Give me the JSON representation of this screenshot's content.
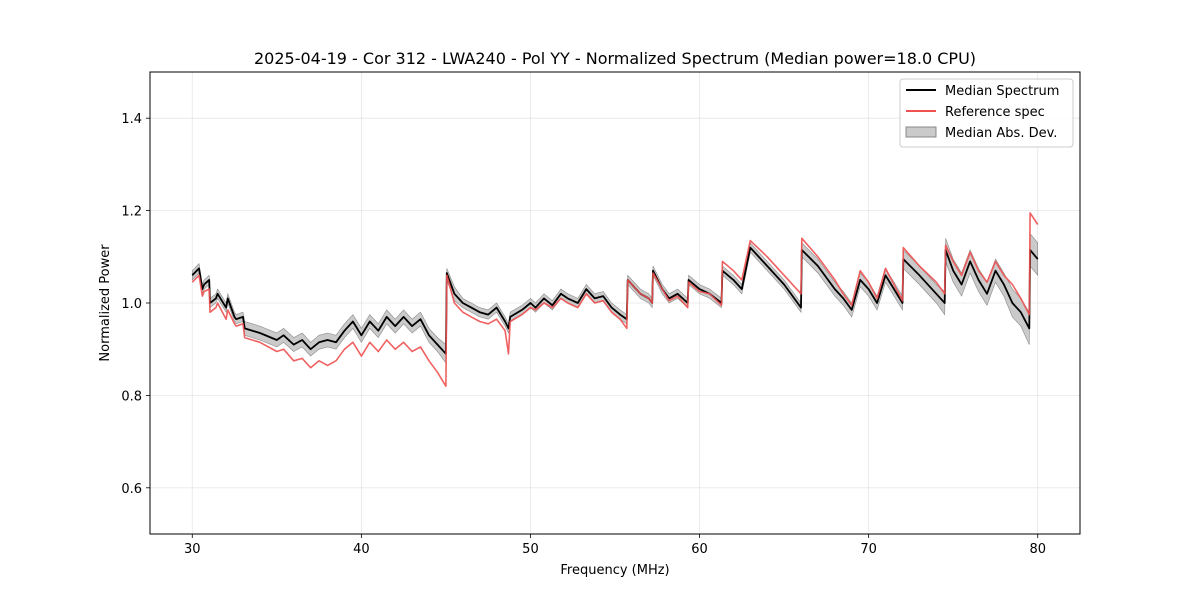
{
  "chart_data": {
    "type": "line",
    "title": "2025-04-19 - Cor 312 - LWA240 - Pol YY - Normalized Spectrum (Median power=18.0 CPU)",
    "xlabel": "Frequency (MHz)",
    "ylabel": "Normalized Power",
    "xlim": [
      27.5,
      82.5
    ],
    "ylim": [
      0.5,
      1.5
    ],
    "xticks": [
      30,
      40,
      50,
      60,
      70,
      80
    ],
    "yticks": [
      0.6,
      0.8,
      1.0,
      1.2,
      1.4
    ],
    "xtick_labels": [
      "30",
      "40",
      "50",
      "60",
      "70",
      "80"
    ],
    "ytick_labels": [
      "0.6",
      "0.8",
      "1.0",
      "1.2",
      "1.4"
    ],
    "grid": true,
    "legend_position": "top-right",
    "legend": [
      "Median Spectrum",
      "Reference spec",
      "Median Abs. Dev."
    ],
    "colors": {
      "median": "#000000",
      "reference": "#f05050",
      "mad": "#a6a6a6"
    },
    "series": [
      {
        "name": "Median Spectrum",
        "x": [
          30.0,
          30.4,
          30.6,
          30.7,
          31.0,
          31.05,
          31.4,
          31.5,
          32.0,
          32.1,
          32.5,
          32.6,
          33.0,
          33.1,
          34.0,
          35.0,
          35.4,
          36.0,
          36.5,
          37.0,
          37.5,
          38.0,
          38.5,
          39.0,
          39.5,
          40.0,
          40.5,
          41.0,
          41.5,
          42.0,
          42.5,
          43.0,
          43.5,
          44.0,
          44.5,
          45.0,
          45.05,
          45.5,
          46.0,
          46.5,
          47.0,
          47.5,
          48.0,
          48.5,
          48.7,
          48.8,
          49.5,
          50.0,
          50.3,
          50.8,
          51.3,
          51.8,
          52.2,
          52.8,
          53.3,
          53.8,
          54.3,
          54.8,
          55.3,
          55.7,
          55.75,
          56.5,
          57.0,
          57.2,
          57.25,
          57.8,
          58.2,
          58.7,
          59.3,
          59.35,
          60.0,
          60.6,
          61.3,
          61.35,
          62.0,
          62.5,
          63.0,
          64.0,
          65.0,
          66.0,
          66.05,
          67.0,
          68.0,
          68.5,
          69.0,
          69.5,
          70.0,
          70.5,
          71.0,
          71.5,
          72.0,
          72.05,
          73.0,
          74.0,
          74.5,
          74.55,
          75.0,
          75.5,
          76.0,
          76.5,
          77.0,
          77.5,
          78.0,
          78.5,
          79.0,
          79.5,
          79.55,
          80.0
        ],
        "y": [
          1.06,
          1.075,
          1.03,
          1.04,
          1.05,
          1.0,
          1.01,
          1.02,
          0.99,
          1.01,
          0.97,
          0.965,
          0.97,
          0.945,
          0.935,
          0.92,
          0.93,
          0.91,
          0.92,
          0.9,
          0.915,
          0.92,
          0.915,
          0.94,
          0.96,
          0.93,
          0.96,
          0.94,
          0.97,
          0.95,
          0.97,
          0.95,
          0.965,
          0.93,
          0.91,
          0.89,
          1.065,
          1.02,
          1.0,
          0.99,
          0.98,
          0.975,
          0.99,
          0.96,
          0.945,
          0.97,
          0.985,
          1.0,
          0.99,
          1.01,
          0.995,
          1.02,
          1.01,
          1.0,
          1.03,
          1.01,
          1.015,
          0.99,
          0.975,
          0.965,
          1.05,
          1.02,
          1.01,
          1.0,
          1.07,
          1.03,
          1.01,
          1.02,
          1.0,
          1.05,
          1.03,
          1.02,
          1.0,
          1.07,
          1.05,
          1.03,
          1.12,
          1.08,
          1.04,
          0.99,
          1.115,
          1.08,
          1.03,
          1.01,
          0.985,
          1.05,
          1.03,
          1.0,
          1.06,
          1.03,
          1.0,
          1.095,
          1.06,
          1.02,
          1.0,
          1.115,
          1.07,
          1.04,
          1.09,
          1.05,
          1.02,
          1.07,
          1.04,
          1.0,
          0.98,
          0.945,
          1.115,
          1.095
        ]
      },
      {
        "name": "Reference spec",
        "x": [
          30.0,
          30.4,
          30.6,
          30.7,
          31.0,
          31.05,
          31.4,
          31.5,
          32.0,
          32.1,
          32.5,
          32.6,
          33.0,
          33.1,
          34.0,
          35.0,
          35.4,
          36.0,
          36.5,
          37.0,
          37.5,
          38.0,
          38.5,
          39.0,
          39.5,
          40.0,
          40.5,
          41.0,
          41.5,
          42.0,
          42.5,
          43.0,
          43.5,
          44.0,
          44.5,
          45.0,
          45.05,
          45.5,
          46.0,
          46.5,
          47.0,
          47.5,
          48.0,
          48.5,
          48.7,
          48.8,
          49.5,
          50.0,
          50.3,
          50.8,
          51.3,
          51.8,
          52.2,
          52.8,
          53.3,
          53.8,
          54.3,
          54.8,
          55.3,
          55.7,
          55.75,
          56.5,
          57.0,
          57.2,
          57.25,
          57.8,
          58.2,
          58.7,
          59.3,
          59.35,
          60.0,
          60.6,
          61.3,
          61.35,
          62.0,
          62.5,
          63.0,
          64.0,
          65.0,
          66.0,
          66.05,
          67.0,
          68.0,
          68.5,
          69.0,
          69.5,
          70.0,
          70.5,
          71.0,
          71.5,
          72.0,
          72.05,
          73.0,
          74.0,
          74.5,
          74.55,
          75.0,
          75.5,
          76.0,
          76.5,
          77.0,
          77.5,
          78.0,
          78.5,
          79.0,
          79.5,
          79.55,
          80.0
        ],
        "y": [
          1.045,
          1.06,
          1.015,
          1.025,
          1.03,
          0.98,
          0.99,
          1.0,
          0.965,
          0.985,
          0.955,
          0.95,
          0.955,
          0.925,
          0.915,
          0.895,
          0.9,
          0.875,
          0.88,
          0.86,
          0.875,
          0.865,
          0.875,
          0.9,
          0.915,
          0.885,
          0.915,
          0.895,
          0.92,
          0.9,
          0.915,
          0.895,
          0.905,
          0.875,
          0.85,
          0.82,
          1.06,
          1.0,
          0.98,
          0.97,
          0.96,
          0.955,
          0.965,
          0.94,
          0.89,
          0.96,
          0.975,
          0.99,
          0.985,
          1.0,
          0.99,
          1.01,
          1.0,
          0.99,
          1.02,
          1.0,
          1.005,
          0.98,
          0.965,
          0.945,
          1.05,
          1.02,
          1.01,
          1.0,
          1.065,
          1.03,
          1.005,
          1.015,
          0.99,
          1.045,
          1.025,
          1.02,
          0.995,
          1.09,
          1.07,
          1.05,
          1.135,
          1.1,
          1.06,
          1.02,
          1.14,
          1.1,
          1.05,
          1.02,
          0.995,
          1.07,
          1.045,
          1.01,
          1.075,
          1.04,
          1.005,
          1.12,
          1.08,
          1.045,
          1.02,
          1.125,
          1.09,
          1.06,
          1.11,
          1.07,
          1.045,
          1.09,
          1.06,
          1.04,
          1.01,
          0.975,
          1.195,
          1.17
        ]
      },
      {
        "name": "Median Abs. Dev.",
        "kind": "band",
        "x": [
          30.0,
          30.4,
          30.6,
          30.7,
          31.0,
          31.05,
          31.4,
          31.5,
          32.0,
          32.1,
          32.5,
          32.6,
          33.0,
          33.1,
          34.0,
          35.0,
          35.4,
          36.0,
          36.5,
          37.0,
          37.5,
          38.0,
          38.5,
          39.0,
          39.5,
          40.0,
          40.5,
          41.0,
          41.5,
          42.0,
          42.5,
          43.0,
          43.5,
          44.0,
          44.5,
          45.0,
          45.05,
          45.5,
          46.0,
          46.5,
          47.0,
          47.5,
          48.0,
          48.5,
          48.7,
          48.8,
          49.5,
          50.0,
          50.3,
          50.8,
          51.3,
          51.8,
          52.2,
          52.8,
          53.3,
          53.8,
          54.3,
          54.8,
          55.3,
          55.7,
          55.75,
          56.5,
          57.0,
          57.2,
          57.25,
          57.8,
          58.2,
          58.7,
          59.3,
          59.35,
          60.0,
          60.6,
          61.3,
          61.35,
          62.0,
          62.5,
          63.0,
          64.0,
          65.0,
          66.0,
          66.05,
          67.0,
          68.0,
          68.5,
          69.0,
          69.5,
          70.0,
          70.5,
          71.0,
          71.5,
          72.0,
          72.05,
          73.0,
          74.0,
          74.5,
          74.55,
          75.0,
          75.5,
          76.0,
          76.5,
          77.0,
          77.5,
          78.0,
          78.5,
          79.0,
          79.5,
          79.55,
          80.0
        ],
        "lower": [
          1.05,
          1.065,
          1.02,
          1.03,
          1.04,
          0.99,
          1.0,
          1.01,
          0.98,
          1.0,
          0.96,
          0.955,
          0.96,
          0.93,
          0.92,
          0.905,
          0.915,
          0.895,
          0.905,
          0.885,
          0.9,
          0.905,
          0.9,
          0.925,
          0.945,
          0.915,
          0.945,
          0.925,
          0.955,
          0.935,
          0.955,
          0.935,
          0.95,
          0.915,
          0.895,
          0.87,
          1.05,
          1.005,
          0.99,
          0.98,
          0.97,
          0.965,
          0.98,
          0.95,
          0.935,
          0.96,
          0.975,
          0.99,
          0.98,
          1.0,
          0.985,
          1.01,
          1.0,
          0.99,
          1.02,
          1.0,
          1.005,
          0.98,
          0.965,
          0.955,
          1.04,
          1.01,
          1.0,
          0.99,
          1.06,
          1.02,
          1.0,
          1.01,
          0.99,
          1.04,
          1.02,
          1.01,
          0.99,
          1.06,
          1.04,
          1.02,
          1.11,
          1.07,
          1.03,
          0.98,
          1.1,
          1.065,
          1.015,
          0.995,
          0.97,
          1.035,
          1.015,
          0.985,
          1.045,
          1.015,
          0.985,
          1.075,
          1.04,
          1.0,
          0.975,
          1.09,
          1.045,
          1.015,
          1.065,
          1.025,
          0.995,
          1.045,
          1.015,
          0.97,
          0.95,
          0.91,
          1.08,
          1.06
        ],
        "upper": [
          1.07,
          1.085,
          1.04,
          1.05,
          1.06,
          1.01,
          1.02,
          1.03,
          1.0,
          1.02,
          0.98,
          0.975,
          0.98,
          0.96,
          0.95,
          0.935,
          0.945,
          0.925,
          0.935,
          0.915,
          0.93,
          0.935,
          0.93,
          0.955,
          0.975,
          0.945,
          0.975,
          0.955,
          0.985,
          0.965,
          0.985,
          0.965,
          0.98,
          0.945,
          0.925,
          0.91,
          1.075,
          1.035,
          1.01,
          1.0,
          0.99,
          0.985,
          1.0,
          0.97,
          0.955,
          0.98,
          0.995,
          1.01,
          1.0,
          1.02,
          1.005,
          1.03,
          1.02,
          1.01,
          1.04,
          1.02,
          1.025,
          1.0,
          0.985,
          0.975,
          1.06,
          1.03,
          1.02,
          1.01,
          1.08,
          1.04,
          1.02,
          1.03,
          1.01,
          1.06,
          1.04,
          1.03,
          1.01,
          1.08,
          1.06,
          1.04,
          1.13,
          1.09,
          1.05,
          1.0,
          1.13,
          1.095,
          1.045,
          1.025,
          1.0,
          1.065,
          1.045,
          1.015,
          1.075,
          1.045,
          1.015,
          1.115,
          1.08,
          1.04,
          1.025,
          1.14,
          1.095,
          1.065,
          1.115,
          1.075,
          1.045,
          1.095,
          1.065,
          1.03,
          1.01,
          0.98,
          1.15,
          1.13
        ]
      }
    ]
  }
}
